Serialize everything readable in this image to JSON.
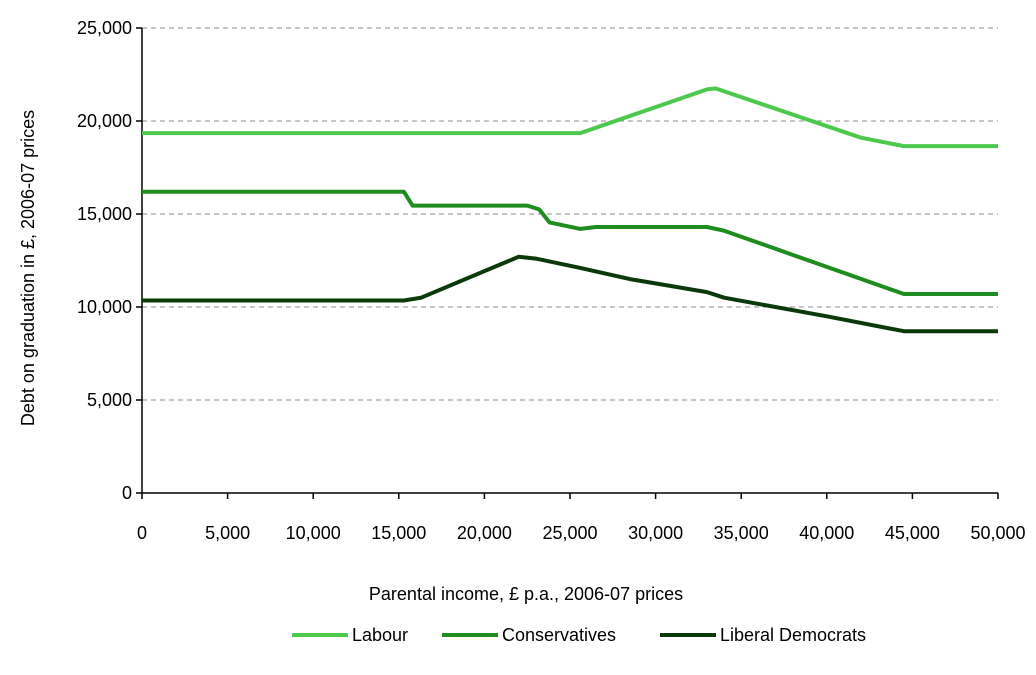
{
  "chart_data": {
    "type": "line",
    "title": "",
    "xlabel": "Parental income, £ p.a., 2006-07 prices",
    "ylabel": "Debt on graduation in £, 2006-07 prices",
    "xlim": [
      0,
      50000
    ],
    "ylim": [
      0,
      25000
    ],
    "x_ticks": [
      0,
      5000,
      10000,
      15000,
      20000,
      25000,
      30000,
      35000,
      40000,
      45000,
      50000
    ],
    "x_tick_labels": [
      "0",
      "5,000",
      "10,000",
      "15,000",
      "20,000",
      "25,000",
      "30,000",
      "35,000",
      "40,000",
      "45,000",
      "50,000"
    ],
    "y_ticks": [
      0,
      5000,
      10000,
      15000,
      20000,
      25000
    ],
    "y_tick_labels": [
      "0",
      "5,000",
      "10,000",
      "15,000",
      "20,000",
      "25,000"
    ],
    "grid": "horizontal dashed",
    "legend_position": "bottom",
    "series": [
      {
        "name": "Labour",
        "color": "#4cc94c",
        "points": [
          [
            0,
            19350
          ],
          [
            25600,
            19350
          ],
          [
            33000,
            21700
          ],
          [
            33500,
            21750
          ],
          [
            42000,
            19100
          ],
          [
            44500,
            18650
          ],
          [
            50000,
            18650
          ]
        ]
      },
      {
        "name": "Conservatives",
        "color": "#1e8c1e",
        "points": [
          [
            0,
            16200
          ],
          [
            15300,
            16200
          ],
          [
            15800,
            15450
          ],
          [
            22500,
            15450
          ],
          [
            23200,
            15250
          ],
          [
            23800,
            14550
          ],
          [
            25600,
            14200
          ],
          [
            26500,
            14300
          ],
          [
            33000,
            14300
          ],
          [
            34000,
            14100
          ],
          [
            44500,
            10700
          ],
          [
            50000,
            10700
          ]
        ]
      },
      {
        "name": "Liberal Democrats",
        "color": "#0a3a0a",
        "points": [
          [
            0,
            10350
          ],
          [
            15300,
            10350
          ],
          [
            16300,
            10500
          ],
          [
            22000,
            12700
          ],
          [
            23000,
            12600
          ],
          [
            25600,
            12100
          ],
          [
            28500,
            11500
          ],
          [
            33000,
            10800
          ],
          [
            34000,
            10500
          ],
          [
            40000,
            9500
          ],
          [
            44500,
            8700
          ],
          [
            50000,
            8700
          ]
        ]
      }
    ]
  }
}
